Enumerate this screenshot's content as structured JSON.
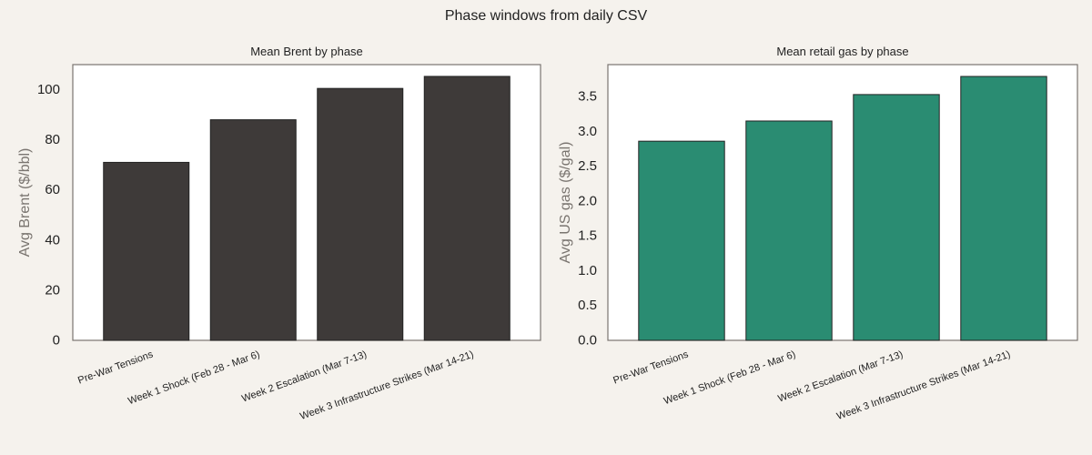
{
  "figure": {
    "title": "Phase windows from daily CSV",
    "background": "#f5f2ed",
    "panel_background": "#ffffff",
    "spine_color": "#7a7570"
  },
  "chart_data": [
    {
      "type": "bar",
      "title": "Mean Brent by phase",
      "xlabel": "",
      "ylabel": "Avg Brent ($/bbl)",
      "categories": [
        "Pre-War Tensions",
        "Week 1 Shock (Feb 28 - Mar 6)",
        "Week 2 Escalation (Mar 7-13)",
        "Week 3 Infrastructure Strikes (Mar 14-21)"
      ],
      "values": [
        71,
        88,
        100.5,
        105.3
      ],
      "ylim": [
        0,
        110
      ],
      "yticks": [
        0,
        20,
        40,
        60,
        80,
        100
      ],
      "ytick_labels": [
        "0",
        "20",
        "40",
        "60",
        "80",
        "100"
      ],
      "bar_color": "#3e3a39",
      "grid": false
    },
    {
      "type": "bar",
      "title": "Mean retail gas by phase",
      "xlabel": "",
      "ylabel": "Avg US gas ($/gal)",
      "categories": [
        "Pre-War Tensions",
        "Week 1 Shock (Feb 28 - Mar 6)",
        "Week 2 Escalation (Mar 7-13)",
        "Week 3 Infrastructure Strikes (Mar 14-21)"
      ],
      "values": [
        2.86,
        3.15,
        3.53,
        3.79
      ],
      "ylim": [
        0,
        3.96
      ],
      "yticks": [
        0,
        0.5,
        1,
        1.5,
        2,
        2.5,
        3,
        3.5
      ],
      "ytick_labels": [
        "0.0",
        "0.5",
        "1.0",
        "1.5",
        "2.0",
        "2.5",
        "3.0",
        "3.5"
      ],
      "bar_color": "#2a8c72",
      "grid": false
    }
  ]
}
